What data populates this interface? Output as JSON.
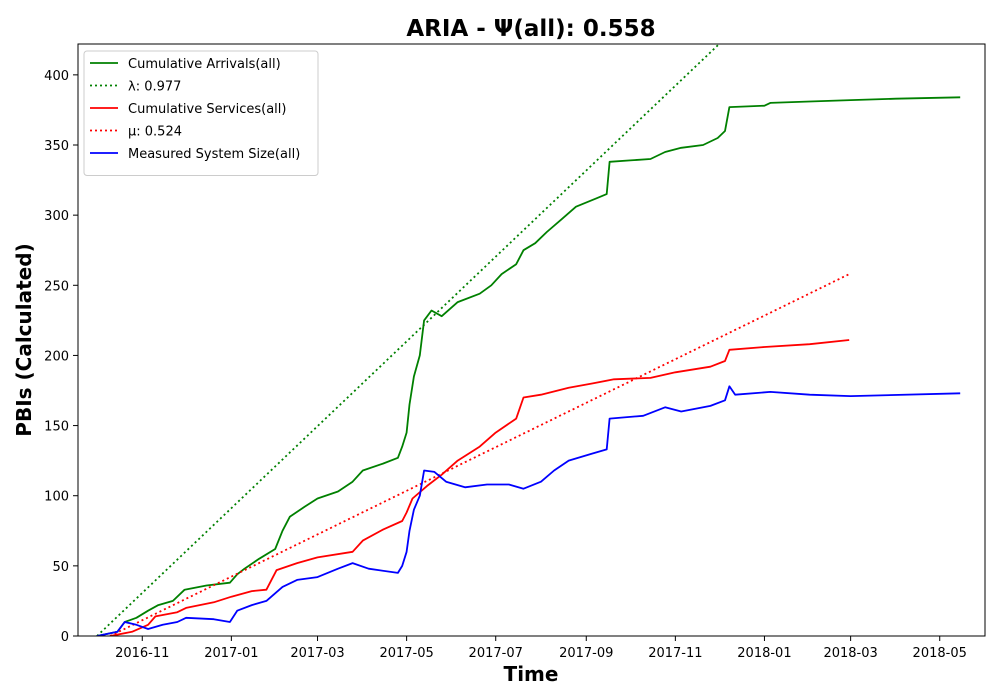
{
  "chart_data": {
    "type": "line",
    "title": "ARIA -  Ψ(all): 0.558",
    "xlabel": "Time",
    "ylabel": "PBIs (Calculated)",
    "xlim": [
      "2016-09-18",
      "2018-06-01"
    ],
    "ylim": [
      0,
      422
    ],
    "x_ticks": [
      "2016-11",
      "2017-01",
      "2017-03",
      "2017-05",
      "2017-07",
      "2017-09",
      "2017-11",
      "2018-01",
      "2018-03",
      "2018-05"
    ],
    "y_ticks": [
      0,
      50,
      100,
      150,
      200,
      250,
      300,
      350,
      400
    ],
    "grid": false,
    "legend_position": "top-left",
    "series": [
      {
        "name": "Cumulative Arrivals(all)",
        "color": "#008000",
        "style": "solid",
        "points": [
          [
            "2016-10-01",
            0
          ],
          [
            "2016-10-15",
            3
          ],
          [
            "2016-10-20",
            10
          ],
          [
            "2016-10-28",
            13
          ],
          [
            "2016-11-05",
            18
          ],
          [
            "2016-11-12",
            22
          ],
          [
            "2016-11-22",
            25
          ],
          [
            "2016-11-30",
            33
          ],
          [
            "2016-12-15",
            36
          ],
          [
            "2016-12-31",
            38
          ],
          [
            "2017-01-05",
            44
          ],
          [
            "2017-01-10",
            48
          ],
          [
            "2017-01-20",
            55
          ],
          [
            "2017-01-31",
            62
          ],
          [
            "2017-02-05",
            75
          ],
          [
            "2017-02-10",
            85
          ],
          [
            "2017-02-20",
            92
          ],
          [
            "2017-03-01",
            98
          ],
          [
            "2017-03-15",
            103
          ],
          [
            "2017-03-25",
            110
          ],
          [
            "2017-04-01",
            118
          ],
          [
            "2017-04-15",
            123
          ],
          [
            "2017-04-25",
            127
          ],
          [
            "2017-04-28",
            135
          ],
          [
            "2017-05-01",
            145
          ],
          [
            "2017-05-03",
            165
          ],
          [
            "2017-05-06",
            185
          ],
          [
            "2017-05-10",
            200
          ],
          [
            "2017-05-13",
            225
          ],
          [
            "2017-05-18",
            232
          ],
          [
            "2017-05-25",
            228
          ],
          [
            "2017-06-05",
            238
          ],
          [
            "2017-06-20",
            244
          ],
          [
            "2017-06-28",
            250
          ],
          [
            "2017-07-05",
            258
          ],
          [
            "2017-07-15",
            265
          ],
          [
            "2017-07-20",
            275
          ],
          [
            "2017-07-28",
            280
          ],
          [
            "2017-08-05",
            288
          ],
          [
            "2017-08-15",
            297
          ],
          [
            "2017-08-25",
            306
          ],
          [
            "2017-09-08",
            312
          ],
          [
            "2017-09-15",
            315
          ],
          [
            "2017-09-17",
            338
          ],
          [
            "2017-10-01",
            339
          ],
          [
            "2017-10-15",
            340
          ],
          [
            "2017-10-25",
            345
          ],
          [
            "2017-11-05",
            348
          ],
          [
            "2017-11-20",
            350
          ],
          [
            "2017-11-30",
            355
          ],
          [
            "2017-12-05",
            360
          ],
          [
            "2017-12-08",
            377
          ],
          [
            "2018-01-01",
            378
          ],
          [
            "2018-01-05",
            380
          ],
          [
            "2018-02-01",
            381
          ],
          [
            "2018-03-01",
            382
          ],
          [
            "2018-04-01",
            383
          ],
          [
            "2018-05-15",
            384
          ]
        ]
      },
      {
        "name": "λ: 0.977",
        "color": "#008000",
        "style": "dotted",
        "points": [
          [
            "2016-10-01",
            0
          ],
          [
            "2017-12-01",
            422
          ]
        ]
      },
      {
        "name": "Cumulative Services(all)",
        "color": "#ff0000",
        "style": "solid",
        "points": [
          [
            "2016-10-10",
            0
          ],
          [
            "2016-10-25",
            3
          ],
          [
            "2016-11-05",
            8
          ],
          [
            "2016-11-10",
            14
          ],
          [
            "2016-11-25",
            17
          ],
          [
            "2016-12-01",
            20
          ],
          [
            "2016-12-20",
            24
          ],
          [
            "2017-01-01",
            28
          ],
          [
            "2017-01-15",
            32
          ],
          [
            "2017-01-25",
            33
          ],
          [
            "2017-02-01",
            47
          ],
          [
            "2017-02-15",
            52
          ],
          [
            "2017-03-01",
            56
          ],
          [
            "2017-03-25",
            60
          ],
          [
            "2017-04-01",
            68
          ],
          [
            "2017-04-15",
            76
          ],
          [
            "2017-04-28",
            82
          ],
          [
            "2017-05-01",
            88
          ],
          [
            "2017-05-05",
            98
          ],
          [
            "2017-05-15",
            107
          ],
          [
            "2017-05-25",
            115
          ],
          [
            "2017-06-05",
            125
          ],
          [
            "2017-06-20",
            135
          ],
          [
            "2017-07-01",
            145
          ],
          [
            "2017-07-15",
            155
          ],
          [
            "2017-07-20",
            170
          ],
          [
            "2017-08-01",
            172
          ],
          [
            "2017-08-20",
            177
          ],
          [
            "2017-09-05",
            180
          ],
          [
            "2017-09-20",
            183
          ],
          [
            "2017-10-15",
            184
          ],
          [
            "2017-11-01",
            188
          ],
          [
            "2017-11-25",
            192
          ],
          [
            "2017-12-05",
            196
          ],
          [
            "2017-12-08",
            204
          ],
          [
            "2018-01-01",
            206
          ],
          [
            "2018-02-01",
            208
          ],
          [
            "2018-02-28",
            211
          ]
        ]
      },
      {
        "name": "μ: 0.524",
        "color": "#ff0000",
        "style": "dotted",
        "points": [
          [
            "2016-10-10",
            0
          ],
          [
            "2018-02-28",
            258
          ]
        ]
      },
      {
        "name": "Measured System Size(all)",
        "color": "#0000ff",
        "style": "solid",
        "points": [
          [
            "2016-10-01",
            0
          ],
          [
            "2016-10-15",
            3
          ],
          [
            "2016-10-20",
            10
          ],
          [
            "2016-10-28",
            8
          ],
          [
            "2016-11-05",
            5
          ],
          [
            "2016-11-15",
            8
          ],
          [
            "2016-11-25",
            10
          ],
          [
            "2016-12-01",
            13
          ],
          [
            "2016-12-20",
            12
          ],
          [
            "2016-12-31",
            10
          ],
          [
            "2017-01-05",
            18
          ],
          [
            "2017-01-15",
            22
          ],
          [
            "2017-01-25",
            25
          ],
          [
            "2017-02-05",
            35
          ],
          [
            "2017-02-15",
            40
          ],
          [
            "2017-03-01",
            42
          ],
          [
            "2017-03-15",
            48
          ],
          [
            "2017-03-25",
            52
          ],
          [
            "2017-04-05",
            48
          ],
          [
            "2017-04-25",
            45
          ],
          [
            "2017-04-28",
            50
          ],
          [
            "2017-05-01",
            60
          ],
          [
            "2017-05-03",
            75
          ],
          [
            "2017-05-06",
            90
          ],
          [
            "2017-05-10",
            100
          ],
          [
            "2017-05-13",
            118
          ],
          [
            "2017-05-20",
            117
          ],
          [
            "2017-05-28",
            110
          ],
          [
            "2017-06-10",
            106
          ],
          [
            "2017-06-25",
            108
          ],
          [
            "2017-07-10",
            108
          ],
          [
            "2017-07-20",
            105
          ],
          [
            "2017-08-01",
            110
          ],
          [
            "2017-08-10",
            118
          ],
          [
            "2017-08-20",
            125
          ],
          [
            "2017-09-05",
            130
          ],
          [
            "2017-09-15",
            133
          ],
          [
            "2017-09-17",
            155
          ],
          [
            "2017-10-10",
            157
          ],
          [
            "2017-10-25",
            163
          ],
          [
            "2017-11-05",
            160
          ],
          [
            "2017-11-25",
            164
          ],
          [
            "2017-12-05",
            168
          ],
          [
            "2017-12-08",
            178
          ],
          [
            "2017-12-12",
            172
          ],
          [
            "2018-01-05",
            174
          ],
          [
            "2018-02-01",
            172
          ],
          [
            "2018-03-01",
            171
          ],
          [
            "2018-05-15",
            173
          ]
        ]
      }
    ]
  }
}
